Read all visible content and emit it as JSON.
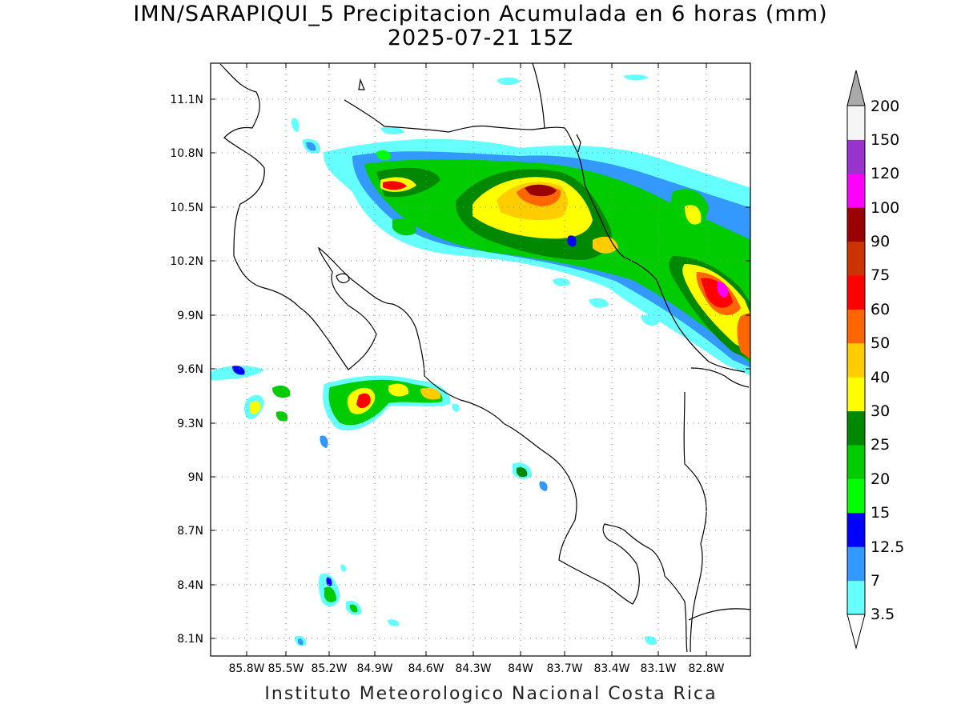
{
  "title": {
    "line1": "IMN/SARAPIQUI_5 Precipitacion Acumulada en 6 horas (mm)",
    "line2": "2025-07-21 15Z"
  },
  "footer": "Instituto Meteorologico Nacional Costa Rica",
  "map": {
    "lon_range": [
      -86.0,
      -82.6
    ],
    "lat_range": [
      8.0,
      11.3
    ],
    "x_ticks": [
      "85.8W",
      "85.5W",
      "85.2W",
      "84.9W",
      "84.6W",
      "84.3W",
      "84W",
      "83.7W",
      "83.4W",
      "83.1W",
      "82.8W"
    ],
    "x_tick_values": [
      -85.8,
      -85.5,
      -85.2,
      -84.9,
      -84.6,
      -84.3,
      -84.0,
      -83.7,
      -83.4,
      -83.1,
      -82.8
    ],
    "y_ticks": [
      "11.1N",
      "10.8N",
      "10.5N",
      "10.2N",
      "9.9N",
      "9.6N",
      "9.3N",
      "9N",
      "8.7N",
      "8.4N",
      "8.1N"
    ],
    "y_tick_values": [
      11.1,
      10.8,
      10.5,
      10.2,
      9.9,
      9.6,
      9.3,
      9.0,
      8.7,
      8.4,
      8.1
    ],
    "grid": "dotted",
    "coastline_color": "#000000"
  },
  "colorbar": {
    "labels": [
      "3.5",
      "7",
      "12.5",
      "15",
      "20",
      "25",
      "30",
      "40",
      "50",
      "60",
      "75",
      "90",
      "100",
      "120",
      "150",
      "200"
    ],
    "colors": [
      "#ffffff",
      "#66ffff",
      "#3399ff",
      "#0000ff",
      "#00ff00",
      "#00cc00",
      "#008800",
      "#ffff00",
      "#ffcc00",
      "#ff6600",
      "#ff0000",
      "#cc3300",
      "#990000",
      "#ff00ff",
      "#9933cc",
      "#f5f5f5",
      "#aaaaaa"
    ]
  }
}
